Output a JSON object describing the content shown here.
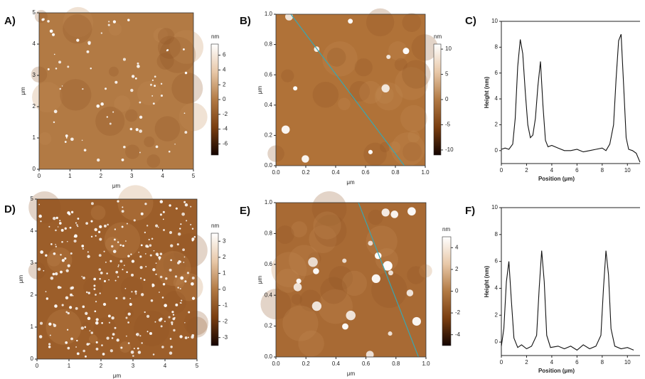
{
  "chart_data": [
    {
      "type": "image",
      "panel_label": "A)",
      "xlabel": "μm",
      "ylabel": "μm",
      "xlim": [
        0,
        5
      ],
      "ylim": [
        0,
        5
      ],
      "xticks": [
        0,
        1,
        2,
        3,
        4,
        5
      ],
      "yticks": [
        0,
        1,
        2,
        3,
        4,
        5
      ],
      "background": "#b27a44",
      "colorbar": {
        "unit": "nm",
        "lim": [
          -7.5,
          7.5
        ],
        "ticks": [
          -6,
          -4,
          -2,
          0,
          2,
          4,
          6
        ],
        "colors": [
          "#140400",
          "#7a3e10",
          "#b27a44",
          "#e8c8a8",
          "#ffffff"
        ]
      }
    },
    {
      "type": "image",
      "panel_label": "B)",
      "xlabel": "μm",
      "ylabel": "μm",
      "xlim": [
        0,
        1
      ],
      "ylim": [
        0,
        1
      ],
      "xticks": [
        {
          "value": 0,
          "label": "0.0"
        },
        0.2,
        0.4,
        0.6,
        0.8,
        {
          "value": 1,
          "label": "1.0"
        }
      ],
      "yticks": [
        {
          "value": 0,
          "label": "0.0"
        },
        0.2,
        0.4,
        0.6,
        0.8,
        {
          "value": 1,
          "label": "1.0"
        }
      ],
      "background": "#b07238",
      "profile": {
        "x": [
          0.1,
          0.86
        ],
        "y": [
          1,
          0
        ],
        "color": "#3aa6b0"
      },
      "colorbar": {
        "unit": "nm",
        "lim": [
          -11,
          11
        ],
        "ticks": [
          -10,
          -5,
          0,
          5,
          10
        ],
        "colors": [
          "#140400",
          "#7a3e10",
          "#b27a44",
          "#e8c8a8",
          "#ffffff"
        ]
      }
    },
    {
      "type": "line",
      "panel_label": "C)",
      "xlabel": "Position (μm)",
      "ylabel": "Height (nm)",
      "xlim": [
        0,
        11
      ],
      "ylim": [
        -1,
        10
      ],
      "xticks": [
        0,
        2,
        4,
        6,
        8,
        10
      ],
      "yticks": [
        0,
        2,
        4,
        6,
        8,
        10
      ],
      "series": [
        {
          "color": "#111111",
          "x": [
            0,
            0.3,
            0.6,
            0.9,
            1.1,
            1.3,
            1.5,
            1.7,
            1.9,
            2.1,
            2.3,
            2.5,
            2.7,
            2.9,
            3.1,
            3.3,
            3.5,
            3.7,
            4.0,
            4.5,
            5.0,
            5.5,
            6.0,
            6.5,
            7.0,
            7.5,
            8.0,
            8.3,
            8.6,
            8.9,
            9.1,
            9.3,
            9.5,
            9.7,
            9.9,
            10.1,
            10.4,
            10.7,
            11.0
          ],
          "values": [
            0.1,
            0.2,
            0.1,
            0.5,
            2.5,
            6.5,
            8.6,
            7.5,
            4.5,
            2.0,
            1.0,
            1.2,
            2.5,
            5.0,
            6.9,
            3.5,
            0.8,
            0.3,
            0.4,
            0.2,
            0.0,
            0.0,
            0.1,
            -0.1,
            0.0,
            0.1,
            0.2,
            0.0,
            0.5,
            2.0,
            5.5,
            8.5,
            9.0,
            5.0,
            1.0,
            0.1,
            0.0,
            -0.2,
            -0.9
          ]
        }
      ]
    },
    {
      "type": "image",
      "panel_label": "D)",
      "xlabel": "μm",
      "ylabel": "μm",
      "xlim": [
        0,
        5
      ],
      "ylim": [
        0,
        5
      ],
      "xticks": [
        0,
        1,
        2,
        3,
        4,
        5
      ],
      "yticks": [
        0,
        1,
        2,
        3,
        4,
        5
      ],
      "background": "#9c5e2a",
      "colorbar": {
        "unit": "nm",
        "lim": [
          -3.5,
          3.5
        ],
        "ticks": [
          -3,
          -2,
          -1,
          0,
          1,
          2,
          3
        ],
        "colors": [
          "#140400",
          "#7a3e10",
          "#b27a44",
          "#e8c8a8",
          "#ffffff"
        ]
      }
    },
    {
      "type": "image",
      "panel_label": "E)",
      "xlabel": "μm",
      "ylabel": "μm",
      "xlim": [
        0,
        1
      ],
      "ylim": [
        0,
        1
      ],
      "xticks": [
        {
          "value": 0,
          "label": "0.0"
        },
        0.2,
        0.4,
        0.6,
        0.8,
        {
          "value": 1,
          "label": "1.0"
        }
      ],
      "yticks": [
        {
          "value": 0,
          "label": "0.0"
        },
        0.2,
        0.4,
        0.6,
        0.8,
        {
          "value": 1,
          "label": "1.0"
        }
      ],
      "background": "#a86a34",
      "profile": {
        "x": [
          0.55,
          0.95
        ],
        "y": [
          1,
          0
        ],
        "color": "#3aa6b0"
      },
      "colorbar": {
        "unit": "nm",
        "lim": [
          -5,
          5
        ],
        "ticks": [
          -4,
          -2,
          0,
          2,
          4
        ],
        "colors": [
          "#140400",
          "#7a3e10",
          "#b27a44",
          "#e8c8a8",
          "#ffffff"
        ]
      }
    },
    {
      "type": "line",
      "panel_label": "F)",
      "xlabel": "Position (μm)",
      "ylabel": "Height (nm)",
      "xlim": [
        0,
        11
      ],
      "ylim": [
        -1,
        10
      ],
      "xticks": [
        0,
        2,
        4,
        6,
        8,
        10
      ],
      "yticks": [
        0,
        2,
        4,
        6,
        8,
        10
      ],
      "series": [
        {
          "color": "#111111",
          "x": [
            0,
            0.2,
            0.4,
            0.6,
            0.8,
            1.0,
            1.3,
            1.6,
            2.0,
            2.4,
            2.8,
            3.0,
            3.2,
            3.4,
            3.6,
            3.9,
            4.5,
            5.0,
            5.5,
            6.0,
            6.5,
            7.0,
            7.5,
            7.9,
            8.1,
            8.3,
            8.5,
            8.7,
            9.0,
            9.5,
            10.0,
            10.5
          ],
          "values": [
            -0.3,
            1.0,
            4.5,
            6.0,
            3.0,
            0.3,
            -0.4,
            -0.2,
            -0.5,
            -0.3,
            0.5,
            4.0,
            6.8,
            4.5,
            0.5,
            -0.4,
            -0.3,
            -0.5,
            -0.3,
            -0.6,
            -0.2,
            -0.5,
            -0.3,
            0.5,
            4.0,
            6.8,
            5.0,
            1.0,
            -0.3,
            -0.5,
            -0.4,
            -0.6
          ]
        }
      ]
    }
  ]
}
